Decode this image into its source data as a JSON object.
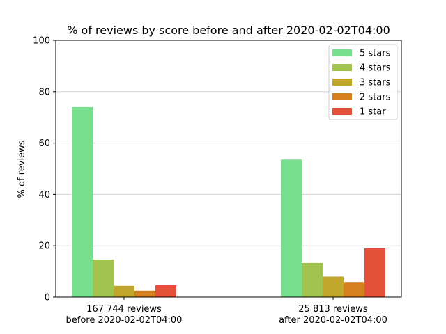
{
  "chart_data": {
    "type": "bar",
    "title": "% of reviews by score before and after 2020-02-02T04:00",
    "xlabel": "",
    "ylabel": "% of reviews",
    "ylim": [
      0,
      100
    ],
    "yticks": [
      "0",
      "20",
      "40",
      "60",
      "80",
      "100"
    ],
    "grid": "horizontal",
    "legend_position": "top-right",
    "groups": [
      {
        "line1": "167 744 reviews",
        "line2": "before 2020-02-02T04:00"
      },
      {
        "line1": "25 813 reviews",
        "line2": "after 2020-02-02T04:00"
      }
    ],
    "series": [
      {
        "name": "5 stars",
        "color": "#77e08e",
        "values": [
          74.0,
          53.6
        ]
      },
      {
        "name": "4 stars",
        "color": "#a2c44f",
        "values": [
          14.6,
          13.3
        ]
      },
      {
        "name": "3 stars",
        "color": "#c0a62a",
        "values": [
          4.4,
          8.0
        ]
      },
      {
        "name": "2 stars",
        "color": "#d5801f",
        "values": [
          2.5,
          5.9
        ]
      },
      {
        "name": "1 star",
        "color": "#e4503a",
        "values": [
          4.6,
          19.0
        ]
      }
    ]
  }
}
